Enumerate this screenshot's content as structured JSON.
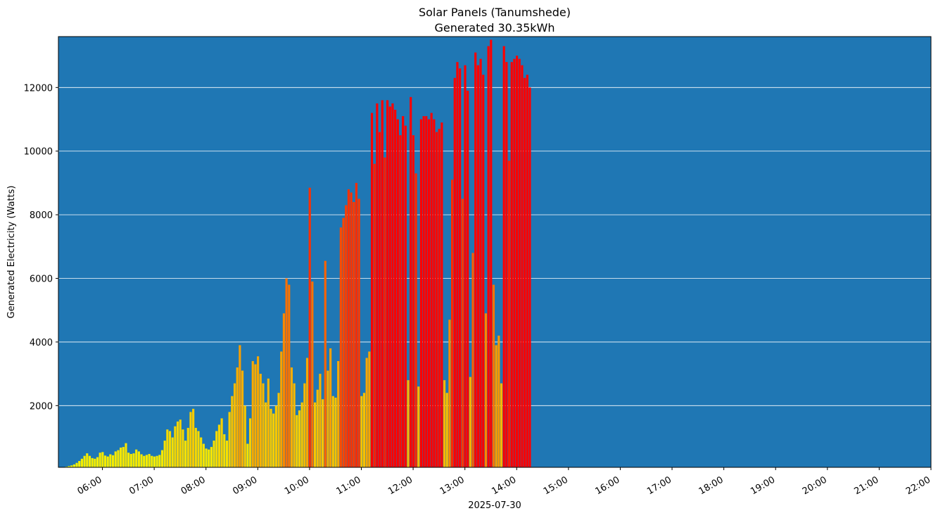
{
  "chart_data": {
    "type": "bar",
    "title": "Solar Panels (Tanumshede)",
    "subtitle": "Generated 30.35kWh",
    "ylabel": "Generated Electricity (Watts)",
    "xlabel": "2025-07-30",
    "ylim": [
      60,
      13600
    ],
    "xlim_hours": [
      5.15,
      22.0
    ],
    "y_ticks": [
      2000,
      4000,
      6000,
      8000,
      10000,
      12000
    ],
    "x_ticks": [
      {
        "hour": 6,
        "label": "06:00"
      },
      {
        "hour": 7,
        "label": "07:00"
      },
      {
        "hour": 8,
        "label": "08:00"
      },
      {
        "hour": 9,
        "label": "09:00"
      },
      {
        "hour": 10,
        "label": "10:00"
      },
      {
        "hour": 11,
        "label": "11:00"
      },
      {
        "hour": 12,
        "label": "12:00"
      },
      {
        "hour": 13,
        "label": "13:00"
      },
      {
        "hour": 14,
        "label": "14:00"
      },
      {
        "hour": 15,
        "label": "15:00"
      },
      {
        "hour": 16,
        "label": "16:00"
      },
      {
        "hour": 17,
        "label": "17:00"
      },
      {
        "hour": 18,
        "label": "18:00"
      },
      {
        "hour": 19,
        "label": "19:00"
      },
      {
        "hour": 20,
        "label": "20:00"
      },
      {
        "hour": 21,
        "label": "21:00"
      },
      {
        "hour": 22,
        "label": "22:00"
      }
    ],
    "grid": "y",
    "colors": {
      "background": "#1f77b4",
      "grid": "#ffffff",
      "low": "#f5f500",
      "high": "#ff0000"
    },
    "bar_width_hours": 0.035,
    "series": [
      {
        "name": "Generated Electricity",
        "points": [
          [
            5.3,
            80
          ],
          [
            5.35,
            100
          ],
          [
            5.4,
            120
          ],
          [
            5.45,
            150
          ],
          [
            5.5,
            200
          ],
          [
            5.55,
            260
          ],
          [
            5.6,
            330
          ],
          [
            5.65,
            420
          ],
          [
            5.7,
            500
          ],
          [
            5.75,
            420
          ],
          [
            5.8,
            350
          ],
          [
            5.85,
            330
          ],
          [
            5.9,
            380
          ],
          [
            5.95,
            520
          ],
          [
            6.0,
            540
          ],
          [
            6.05,
            430
          ],
          [
            6.1,
            400
          ],
          [
            6.15,
            470
          ],
          [
            6.2,
            440
          ],
          [
            6.25,
            560
          ],
          [
            6.3,
            600
          ],
          [
            6.35,
            680
          ],
          [
            6.4,
            700
          ],
          [
            6.45,
            820
          ],
          [
            6.5,
            520
          ],
          [
            6.55,
            480
          ],
          [
            6.6,
            500
          ],
          [
            6.65,
            620
          ],
          [
            6.7,
            560
          ],
          [
            6.75,
            470
          ],
          [
            6.8,
            420
          ],
          [
            6.85,
            450
          ],
          [
            6.9,
            480
          ],
          [
            6.95,
            420
          ],
          [
            7.0,
            400
          ],
          [
            7.05,
            420
          ],
          [
            7.1,
            450
          ],
          [
            7.15,
            600
          ],
          [
            7.2,
            900
          ],
          [
            7.25,
            1250
          ],
          [
            7.3,
            1200
          ],
          [
            7.35,
            1000
          ],
          [
            7.4,
            1350
          ],
          [
            7.45,
            1500
          ],
          [
            7.5,
            1560
          ],
          [
            7.55,
            1250
          ],
          [
            7.6,
            900
          ],
          [
            7.65,
            1300
          ],
          [
            7.7,
            1800
          ],
          [
            7.75,
            1900
          ],
          [
            7.8,
            1300
          ],
          [
            7.85,
            1200
          ],
          [
            7.9,
            1000
          ],
          [
            7.95,
            800
          ],
          [
            8.0,
            650
          ],
          [
            8.05,
            620
          ],
          [
            8.1,
            700
          ],
          [
            8.15,
            900
          ],
          [
            8.2,
            1200
          ],
          [
            8.25,
            1400
          ],
          [
            8.3,
            1600
          ],
          [
            8.35,
            1100
          ],
          [
            8.4,
            900
          ],
          [
            8.45,
            1800
          ],
          [
            8.5,
            2300
          ],
          [
            8.55,
            2700
          ],
          [
            8.6,
            3200
          ],
          [
            8.65,
            3900
          ],
          [
            8.7,
            3100
          ],
          [
            8.75,
            2000
          ],
          [
            8.8,
            800
          ],
          [
            8.85,
            1600
          ],
          [
            8.9,
            3400
          ],
          [
            8.95,
            3300
          ],
          [
            9.0,
            3550
          ],
          [
            9.05,
            3000
          ],
          [
            9.1,
            2700
          ],
          [
            9.15,
            2100
          ],
          [
            9.2,
            2850
          ],
          [
            9.25,
            1900
          ],
          [
            9.3,
            1750
          ],
          [
            9.35,
            2000
          ],
          [
            9.4,
            2400
          ],
          [
            9.45,
            3700
          ],
          [
            9.5,
            4900
          ],
          [
            9.55,
            6000
          ],
          [
            9.6,
            5800
          ],
          [
            9.65,
            3200
          ],
          [
            9.7,
            2700
          ],
          [
            9.75,
            1700
          ],
          [
            9.8,
            1850
          ],
          [
            9.85,
            2100
          ],
          [
            9.9,
            2700
          ],
          [
            9.95,
            3500
          ],
          [
            10.0,
            8850
          ],
          [
            10.05,
            5900
          ],
          [
            10.1,
            2100
          ],
          [
            10.15,
            2500
          ],
          [
            10.2,
            3000
          ],
          [
            10.25,
            2200
          ],
          [
            10.3,
            6550
          ],
          [
            10.35,
            3100
          ],
          [
            10.4,
            3800
          ],
          [
            10.45,
            2300
          ],
          [
            10.5,
            2250
          ],
          [
            10.55,
            3400
          ],
          [
            10.6,
            7600
          ],
          [
            10.65,
            7900
          ],
          [
            10.7,
            8300
          ],
          [
            10.75,
            8800
          ],
          [
            10.8,
            8700
          ],
          [
            10.85,
            8400
          ],
          [
            10.9,
            9000
          ],
          [
            10.95,
            8500
          ],
          [
            11.0,
            2300
          ],
          [
            11.05,
            2400
          ],
          [
            11.1,
            3500
          ],
          [
            11.15,
            3700
          ],
          [
            11.2,
            11200
          ],
          [
            11.25,
            9600
          ],
          [
            11.3,
            11500
          ],
          [
            11.35,
            10600
          ],
          [
            11.4,
            11600
          ],
          [
            11.45,
            9800
          ],
          [
            11.5,
            11600
          ],
          [
            11.55,
            11400
          ],
          [
            11.6,
            11500
          ],
          [
            11.65,
            11300
          ],
          [
            11.7,
            11000
          ],
          [
            11.75,
            10500
          ],
          [
            11.8,
            11100
          ],
          [
            11.85,
            10800
          ],
          [
            11.9,
            2800
          ],
          [
            11.95,
            11700
          ],
          [
            12.0,
            10500
          ],
          [
            12.05,
            9300
          ],
          [
            12.1,
            2600
          ],
          [
            12.15,
            11000
          ],
          [
            12.2,
            11100
          ],
          [
            12.25,
            11100
          ],
          [
            12.3,
            11000
          ],
          [
            12.35,
            11200
          ],
          [
            12.4,
            11000
          ],
          [
            12.45,
            10600
          ],
          [
            12.5,
            10700
          ],
          [
            12.55,
            10900
          ],
          [
            12.6,
            2800
          ],
          [
            12.65,
            2400
          ],
          [
            12.7,
            4700
          ],
          [
            12.75,
            9100
          ],
          [
            12.8,
            12300
          ],
          [
            12.85,
            12800
          ],
          [
            12.9,
            12600
          ],
          [
            12.95,
            8500
          ],
          [
            13.0,
            12700
          ],
          [
            13.05,
            11900
          ],
          [
            13.1,
            2900
          ],
          [
            13.15,
            6800
          ],
          [
            13.2,
            13100
          ],
          [
            13.25,
            12700
          ],
          [
            13.3,
            12900
          ],
          [
            13.35,
            12400
          ],
          [
            13.4,
            4900
          ],
          [
            13.45,
            13300
          ],
          [
            13.5,
            13500
          ],
          [
            13.55,
            5800
          ],
          [
            13.6,
            3900
          ],
          [
            13.65,
            4200
          ],
          [
            13.7,
            2700
          ],
          [
            13.75,
            13300
          ],
          [
            13.8,
            12800
          ],
          [
            13.85,
            9700
          ],
          [
            13.9,
            12800
          ],
          [
            13.95,
            12900
          ],
          [
            14.0,
            13000
          ],
          [
            14.05,
            12900
          ],
          [
            14.1,
            12700
          ],
          [
            14.15,
            12300
          ],
          [
            14.2,
            12400
          ],
          [
            14.25,
            12000
          ]
        ]
      }
    ]
  }
}
